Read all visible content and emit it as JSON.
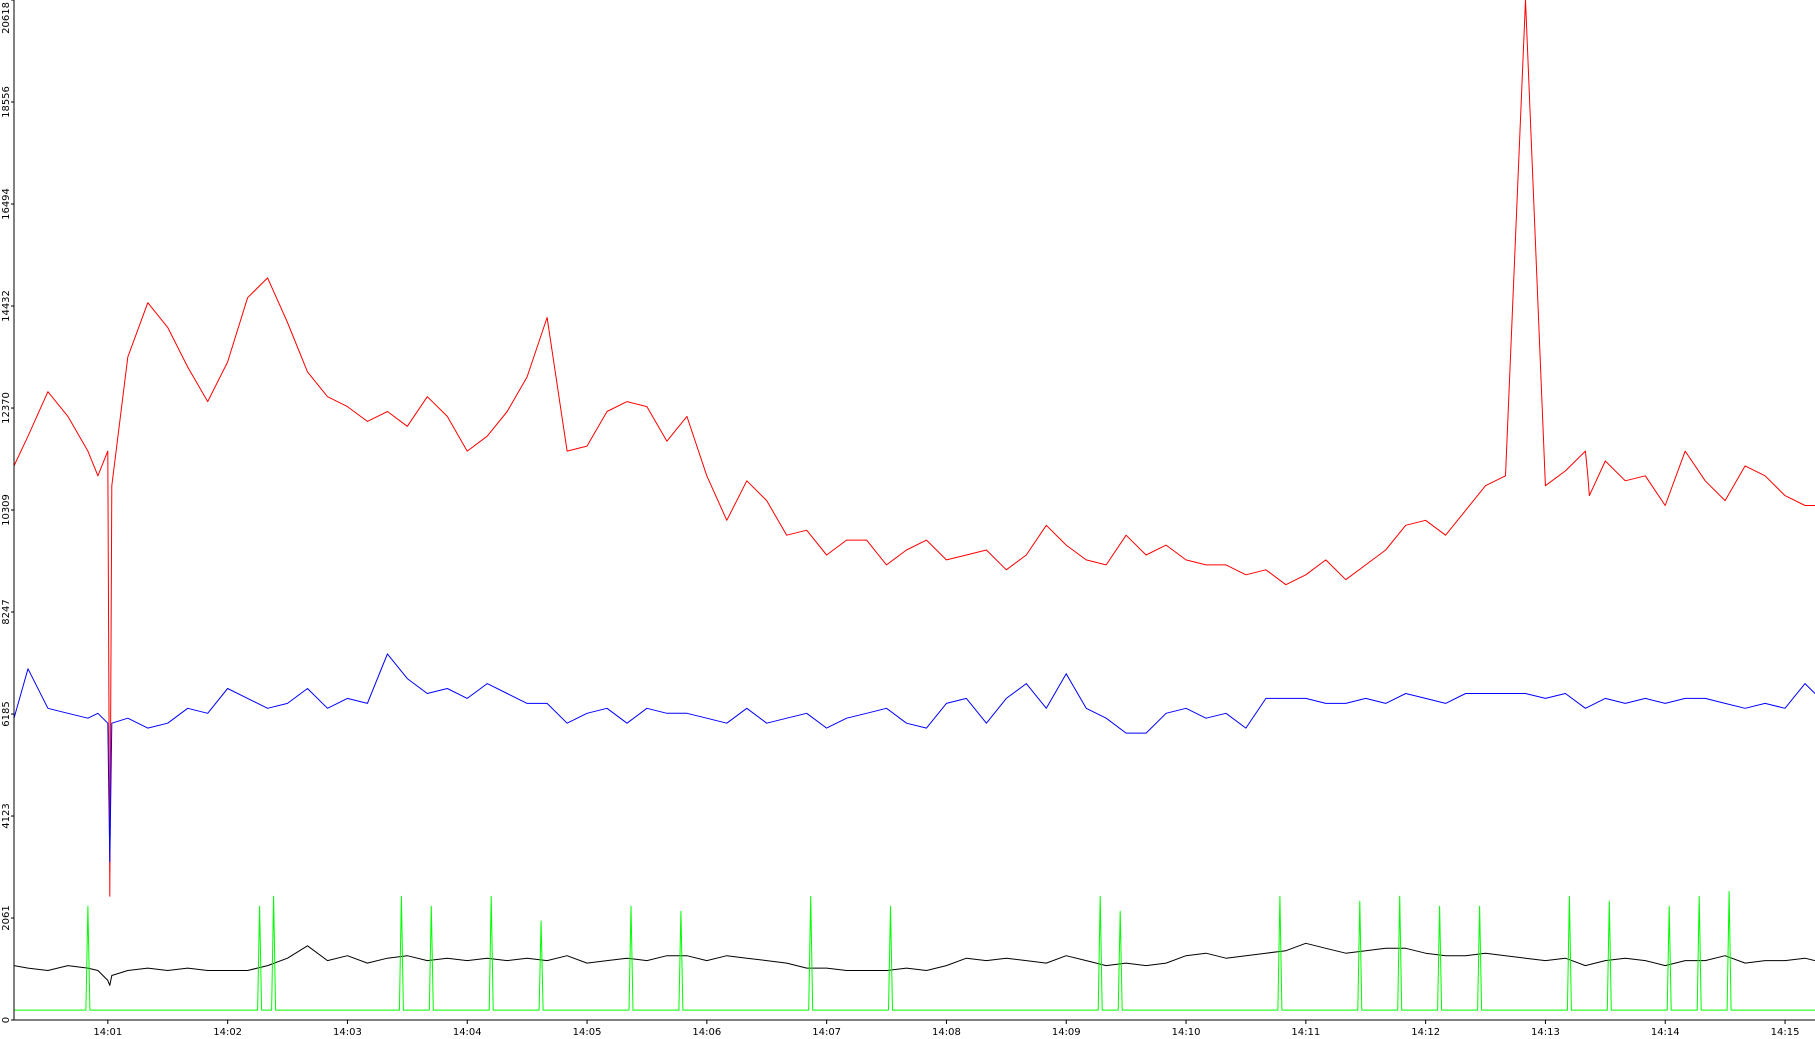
{
  "chart_data": {
    "type": "line",
    "title": "",
    "xlabel": "",
    "ylabel": "",
    "x_ticks": [
      "14:01",
      "14:02",
      "14:03",
      "14:04",
      "14:05",
      "14:06",
      "14:07",
      "14:08",
      "14:09",
      "14:10",
      "14:11",
      "14:12",
      "14:13",
      "14:14",
      "14:15"
    ],
    "y_ticks": [
      "0",
      "2061",
      "4123",
      "6185",
      "8247",
      "10309",
      "12370",
      "14432",
      "16494",
      "18556",
      "20618"
    ],
    "xlim_seconds_after_1400": [
      13,
      915
    ],
    "ylim": [
      0,
      20618
    ],
    "grid": false,
    "legend": "none",
    "series": [
      {
        "color": "#ff0000",
        "x_seconds_after_1400": [
          13,
          20,
          30,
          40,
          50,
          55,
          60,
          61,
          62,
          70,
          80,
          90,
          100,
          110,
          120,
          130,
          140,
          150,
          160,
          170,
          180,
          190,
          200,
          210,
          220,
          230,
          240,
          250,
          260,
          270,
          280,
          290,
          300,
          310,
          320,
          330,
          340,
          350,
          360,
          370,
          380,
          390,
          400,
          410,
          420,
          430,
          440,
          450,
          460,
          470,
          480,
          490,
          500,
          510,
          520,
          530,
          540,
          550,
          560,
          570,
          580,
          590,
          600,
          610,
          620,
          630,
          640,
          650,
          660,
          670,
          680,
          690,
          700,
          710,
          720,
          730,
          740,
          750,
          760,
          770,
          780,
          790,
          800,
          801,
          802,
          810,
          820,
          830,
          840,
          850,
          860,
          870,
          880,
          890,
          900,
          910,
          915
        ],
        "values": [
          11200,
          11800,
          12700,
          12200,
          11500,
          11000,
          11500,
          2500,
          10800,
          13400,
          14500,
          14000,
          13200,
          12500,
          13300,
          14600,
          15000,
          14100,
          13100,
          12600,
          12400,
          12100,
          12300,
          12000,
          12600,
          12200,
          11500,
          11800,
          12300,
          13000,
          14200,
          11500,
          11600,
          12300,
          12500,
          12400,
          11700,
          12200,
          11000,
          10100,
          10900,
          10500,
          9800,
          9900,
          9400,
          9700,
          9700,
          9200,
          9500,
          9700,
          9300,
          9400,
          9500,
          9100,
          9400,
          10000,
          9600,
          9300,
          9200,
          9800,
          9400,
          9600,
          9300,
          9200,
          9200,
          9000,
          9100,
          8800,
          9000,
          9300,
          8900,
          9200,
          9500,
          10000,
          10100,
          9800,
          10300,
          10800,
          11000,
          20618,
          10800,
          11100,
          11500,
          11100,
          10600,
          11300,
          10900,
          11000,
          10400,
          11500,
          10900,
          10500,
          11200,
          11000,
          10600,
          10400,
          10400
        ]
      },
      {
        "color": "#0000ff",
        "x_seconds_after_1400": [
          13,
          20,
          30,
          40,
          50,
          55,
          60,
          61,
          62,
          70,
          80,
          90,
          100,
          110,
          120,
          130,
          140,
          150,
          160,
          170,
          180,
          190,
          200,
          210,
          220,
          230,
          240,
          250,
          260,
          270,
          280,
          290,
          300,
          310,
          320,
          330,
          340,
          350,
          360,
          370,
          380,
          390,
          400,
          410,
          420,
          430,
          440,
          450,
          460,
          470,
          480,
          490,
          500,
          510,
          520,
          530,
          540,
          550,
          560,
          570,
          580,
          590,
          600,
          610,
          620,
          630,
          640,
          650,
          660,
          670,
          680,
          690,
          700,
          710,
          720,
          730,
          740,
          750,
          760,
          770,
          780,
          790,
          800,
          810,
          820,
          830,
          840,
          850,
          860,
          870,
          880,
          890,
          900,
          910,
          915
        ],
        "values": [
          6100,
          7100,
          6300,
          6200,
          6100,
          6200,
          6000,
          3200,
          6000,
          6100,
          5900,
          6000,
          6300,
          6200,
          6700,
          6500,
          6300,
          6400,
          6700,
          6300,
          6500,
          6400,
          7400,
          6900,
          6600,
          6700,
          6500,
          6800,
          6600,
          6400,
          6400,
          6000,
          6200,
          6300,
          6000,
          6300,
          6200,
          6200,
          6100,
          6000,
          6300,
          6000,
          6100,
          6200,
          5900,
          6100,
          6200,
          6300,
          6000,
          5900,
          6400,
          6500,
          6000,
          6500,
          6800,
          6300,
          7000,
          6300,
          6100,
          5800,
          5800,
          6200,
          6300,
          6100,
          6200,
          5900,
          6500,
          6500,
          6500,
          6400,
          6400,
          6500,
          6400,
          6600,
          6500,
          6400,
          6600,
          6600,
          6600,
          6600,
          6500,
          6600,
          6300,
          6500,
          6400,
          6500,
          6400,
          6500,
          6500,
          6400,
          6300,
          6400,
          6300,
          6800,
          6600
        ]
      },
      {
        "color": "#000000",
        "x_seconds_after_1400": [
          13,
          20,
          30,
          40,
          50,
          55,
          60,
          61,
          62,
          70,
          80,
          90,
          100,
          110,
          120,
          130,
          140,
          150,
          160,
          170,
          180,
          190,
          200,
          210,
          220,
          230,
          240,
          250,
          260,
          270,
          280,
          290,
          300,
          310,
          320,
          330,
          340,
          350,
          360,
          370,
          380,
          390,
          400,
          410,
          420,
          430,
          440,
          450,
          460,
          470,
          480,
          490,
          500,
          510,
          520,
          530,
          540,
          550,
          560,
          570,
          580,
          590,
          600,
          610,
          620,
          630,
          640,
          650,
          660,
          670,
          680,
          690,
          700,
          710,
          720,
          730,
          740,
          750,
          760,
          770,
          780,
          790,
          800,
          810,
          820,
          830,
          840,
          850,
          860,
          870,
          880,
          890,
          900,
          910,
          915
        ],
        "values": [
          1100,
          1050,
          1000,
          1100,
          1050,
          1000,
          800,
          700,
          900,
          1000,
          1050,
          1000,
          1050,
          1000,
          1000,
          1000,
          1100,
          1250,
          1500,
          1200,
          1300,
          1150,
          1250,
          1300,
          1200,
          1250,
          1200,
          1250,
          1200,
          1250,
          1200,
          1300,
          1150,
          1200,
          1250,
          1200,
          1300,
          1300,
          1200,
          1300,
          1250,
          1200,
          1150,
          1050,
          1050,
          1000,
          1000,
          1000,
          1050,
          1000,
          1100,
          1250,
          1200,
          1250,
          1200,
          1150,
          1300,
          1200,
          1100,
          1150,
          1100,
          1150,
          1300,
          1350,
          1250,
          1300,
          1350,
          1400,
          1550,
          1450,
          1350,
          1400,
          1450,
          1450,
          1350,
          1300,
          1300,
          1350,
          1300,
          1250,
          1200,
          1250,
          1100,
          1200,
          1250,
          1200,
          1100,
          1200,
          1200,
          1300,
          1150,
          1200,
          1200,
          1250,
          1200
        ]
      },
      {
        "color": "#00ff00",
        "x_seconds_after_1400": [
          13,
          48,
          49,
          50,
          51,
          52,
          80,
          134,
          135,
          136,
          137,
          138,
          141,
          142,
          143,
          144,
          145,
          205,
          206,
          207,
          208,
          209,
          220,
          221,
          222,
          223,
          224,
          250,
          251,
          252,
          253,
          254,
          275,
          276,
          277,
          278,
          279,
          320,
          321,
          322,
          323,
          324,
          345,
          346,
          347,
          348,
          349,
          410,
          411,
          412,
          413,
          414,
          450,
          451,
          452,
          453,
          454,
          555,
          556,
          557,
          558,
          559,
          565,
          566,
          567,
          568,
          569,
          645,
          646,
          647,
          648,
          649,
          685,
          686,
          687,
          688,
          689,
          705,
          706,
          707,
          708,
          709,
          725,
          726,
          727,
          728,
          729,
          745,
          746,
          747,
          748,
          749,
          790,
          791,
          792,
          793,
          794,
          810,
          811,
          812,
          813,
          814,
          840,
          841,
          842,
          843,
          844,
          855,
          856,
          857,
          858,
          859,
          870,
          871,
          872,
          873,
          874,
          915
        ],
        "values": [
          200,
          200,
          200,
          2300,
          200,
          200,
          200,
          200,
          200,
          2300,
          200,
          200,
          200,
          200,
          2500,
          200,
          200,
          200,
          200,
          2500,
          200,
          200,
          200,
          200,
          2300,
          200,
          200,
          200,
          200,
          2500,
          200,
          200,
          200,
          200,
          2000,
          200,
          200,
          200,
          200,
          2300,
          200,
          200,
          200,
          200,
          2200,
          200,
          200,
          200,
          200,
          2500,
          200,
          200,
          200,
          200,
          2300,
          200,
          200,
          200,
          200,
          2500,
          200,
          200,
          200,
          200,
          2200,
          200,
          200,
          200,
          200,
          2500,
          200,
          200,
          200,
          200,
          2400,
          200,
          200,
          200,
          200,
          2500,
          200,
          200,
          200,
          200,
          2300,
          200,
          200,
          200,
          200,
          2300,
          200,
          200,
          200,
          200,
          2500,
          200,
          200,
          200,
          200,
          2400,
          200,
          200,
          200,
          200,
          2300,
          200,
          200,
          200,
          200,
          2500,
          200,
          200,
          200,
          200,
          2600,
          200,
          200,
          200
        ]
      }
    ]
  }
}
